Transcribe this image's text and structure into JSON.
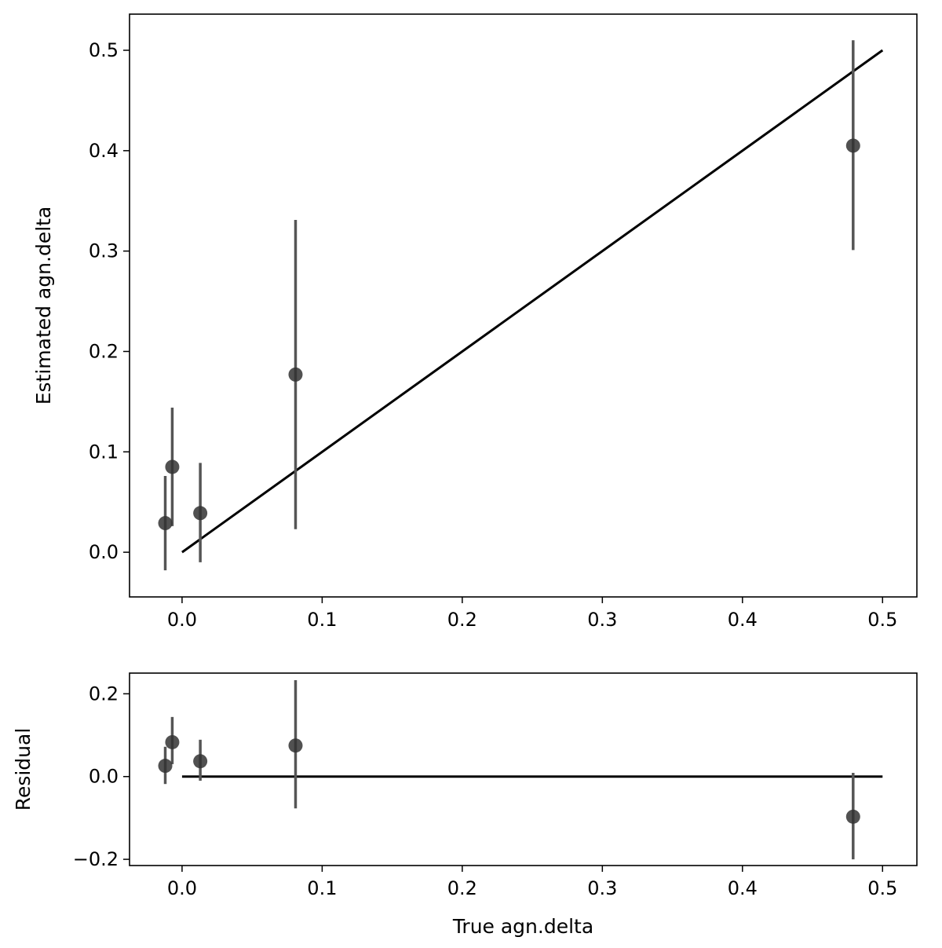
{
  "chart_data": [
    {
      "type": "scatter",
      "title": "",
      "xlabel": "",
      "ylabel": "Estimated agn.delta",
      "xlim": [
        -0.0375,
        0.5245
      ],
      "ylim": [
        -0.0445,
        0.536
      ],
      "xticks": [
        0.0,
        0.1,
        0.2,
        0.3,
        0.4,
        0.5
      ],
      "xtick_labels": [
        "0.0",
        "0.1",
        "0.2",
        "0.3",
        "0.4",
        "0.5"
      ],
      "yticks": [
        0.0,
        0.1,
        0.2,
        0.3,
        0.4,
        0.5
      ],
      "ytick_labels": [
        "0.0",
        "0.1",
        "0.2",
        "0.3",
        "0.4",
        "0.5"
      ],
      "grid": false,
      "reference_line": {
        "x": [
          0.0,
          0.5
        ],
        "y": [
          0.0,
          0.5
        ]
      },
      "points": [
        {
          "x": -0.012,
          "y": 0.029,
          "err_low": -0.018,
          "err_high": 0.076
        },
        {
          "x": -0.007,
          "y": 0.085,
          "err_low": 0.026,
          "err_high": 0.144
        },
        {
          "x": 0.013,
          "y": 0.039,
          "err_low": -0.01,
          "err_high": 0.089
        },
        {
          "x": 0.081,
          "y": 0.177,
          "err_low": 0.023,
          "err_high": 0.331
        },
        {
          "x": 0.479,
          "y": 0.405,
          "err_low": 0.301,
          "err_high": 0.51
        }
      ]
    },
    {
      "type": "scatter",
      "title": "",
      "xlabel": "True agn.delta",
      "ylabel": "Residual",
      "xlim": [
        -0.0375,
        0.5245
      ],
      "ylim": [
        -0.215,
        0.25
      ],
      "xticks": [
        0.0,
        0.1,
        0.2,
        0.3,
        0.4,
        0.5
      ],
      "xtick_labels": [
        "0.0",
        "0.1",
        "0.2",
        "0.3",
        "0.4",
        "0.5"
      ],
      "yticks": [
        -0.2,
        0.0,
        0.2
      ],
      "ytick_labels": [
        "−0.2",
        "0.0",
        "0.2"
      ],
      "grid": false,
      "reference_line": {
        "x": [
          0.0,
          0.5
        ],
        "y": [
          0.0,
          0.0
        ]
      },
      "points": [
        {
          "x": -0.012,
          "y": 0.026,
          "err_low": -0.018,
          "err_high": 0.072
        },
        {
          "x": -0.007,
          "y": 0.083,
          "err_low": 0.03,
          "err_high": 0.144
        },
        {
          "x": 0.013,
          "y": 0.037,
          "err_low": -0.01,
          "err_high": 0.089
        },
        {
          "x": 0.081,
          "y": 0.075,
          "err_low": -0.077,
          "err_high": 0.233
        },
        {
          "x": 0.479,
          "y": -0.097,
          "err_low": -0.2,
          "err_high": 0.009
        }
      ]
    }
  ],
  "style": {
    "marker_color": "#333333",
    "errbar_color": "#555555",
    "line_color": "#000000"
  }
}
